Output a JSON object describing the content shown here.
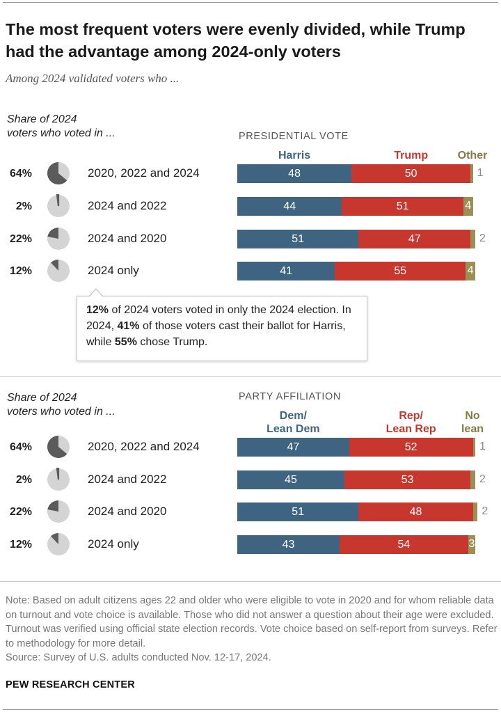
{
  "title": "The most frequent voters were evenly divided, while Trump had the advantage among 2024-only voters",
  "subtitle": "Among 2024 validated voters who ...",
  "share_label_line1": "Share of 2024",
  "share_label_line2": "voters who voted in ...",
  "callout": {
    "p1_bold": "12%",
    "p1_text": " of 2024 voters voted in only the 2024 election. In 2024, ",
    "p2_bold": "41%",
    "p2_text": " of those voters cast their ballot for Harris, while ",
    "p3_bold": "55%",
    "p3_text": " chose Trump."
  },
  "note": {
    "text": "Note: Based on adult citizens ages 22 and older who were eligible to vote in 2020 and for whom reliable data on turnout and vote choice is available. Those who did not answer a question about their age were excluded. Turnout was verified using official state election records. Vote choice based on self-report from surveys. Refer to methodology for more detail.",
    "source": "Source: Survey of U.S. adults conducted Nov. 12-17, 2024."
  },
  "org": "PEW RESEARCH CENTER",
  "colors": {
    "dem": "#3e6482",
    "rep": "#c8372d",
    "other": "#9b8f55",
    "pie_light": "#d4d4d4",
    "pie_dark": "#5b5b5b",
    "dem_head": "#3e6482",
    "rep_head": "#c8372d",
    "other_head": "#857a45"
  },
  "chart_data": [
    {
      "type": "bar",
      "stacked": true,
      "section_label": "PRESIDENTIAL VOTE",
      "headers": [
        "Harris",
        "Trump",
        "Other"
      ],
      "categories": [
        "2020, 2022 and 2024",
        "2024 and 2022",
        "2024 and 2020",
        "2024 only"
      ],
      "share_labels": [
        "64%",
        "2%",
        "22%",
        "12%"
      ],
      "share_values": [
        64,
        2,
        22,
        12
      ],
      "series": [
        {
          "name": "Harris",
          "values": [
            48,
            44,
            51,
            41
          ]
        },
        {
          "name": "Trump",
          "values": [
            50,
            51,
            47,
            55
          ]
        },
        {
          "name": "Other",
          "values": [
            1,
            4,
            2,
            4
          ]
        }
      ]
    },
    {
      "type": "bar",
      "stacked": true,
      "section_label": "PARTY AFFILIATION",
      "headers": [
        "Dem/\nLean Dem",
        "Rep/\nLean Rep",
        "No\nlean"
      ],
      "categories": [
        "2020, 2022 and 2024",
        "2024 and 2022",
        "2024 and 2020",
        "2024 only"
      ],
      "share_labels": [
        "64%",
        "2%",
        "22%",
        "12%"
      ],
      "share_values": [
        64,
        2,
        22,
        12
      ],
      "series": [
        {
          "name": "Dem/Lean Dem",
          "values": [
            47,
            45,
            51,
            43
          ]
        },
        {
          "name": "Rep/Lean Rep",
          "values": [
            52,
            53,
            48,
            54
          ]
        },
        {
          "name": "No lean",
          "values": [
            1,
            2,
            2,
            3
          ]
        }
      ]
    }
  ]
}
